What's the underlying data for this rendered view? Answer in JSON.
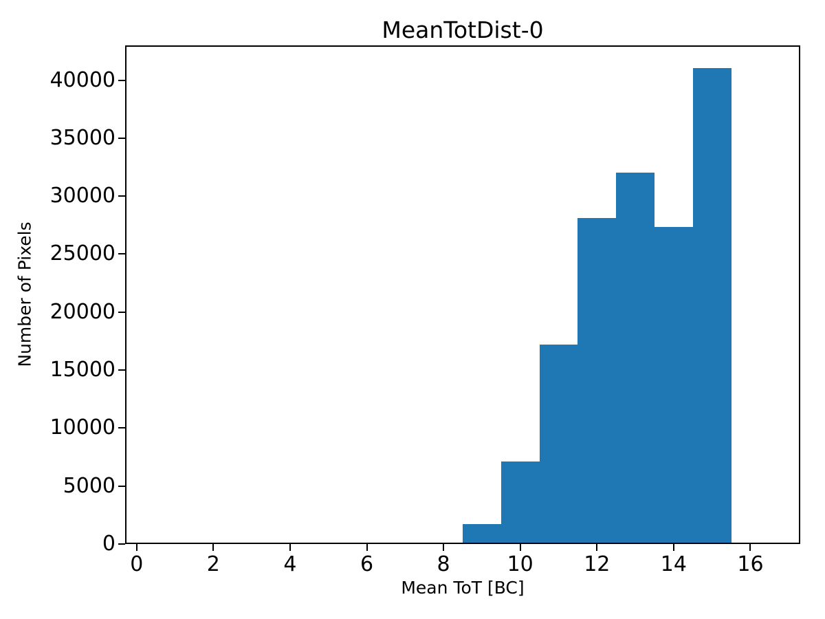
{
  "chart_data": {
    "type": "bar",
    "subtype": "histogram",
    "title": "MeanTotDist-0",
    "xlabel": "Mean ToT [BC]",
    "ylabel": "Number of Pixels",
    "bin_edges": [
      7.5,
      8.5,
      9.5,
      10.5,
      11.5,
      12.5,
      13.5,
      14.5,
      15.5
    ],
    "counts": [
      200,
      1600,
      7000,
      17100,
      28000,
      31900,
      27200,
      40900
    ],
    "x_ticks": [
      0,
      2,
      4,
      6,
      8,
      10,
      12,
      14,
      16
    ],
    "y_ticks": [
      0,
      5000,
      10000,
      15000,
      20000,
      25000,
      30000,
      35000,
      40000
    ],
    "xlim": [
      -0.3,
      17.3
    ],
    "ylim": [
      0,
      43000
    ],
    "bar_color": "#1f77b4",
    "axis_color": "#000000",
    "background_color": "#ffffff",
    "grid": false,
    "legend": "none"
  }
}
